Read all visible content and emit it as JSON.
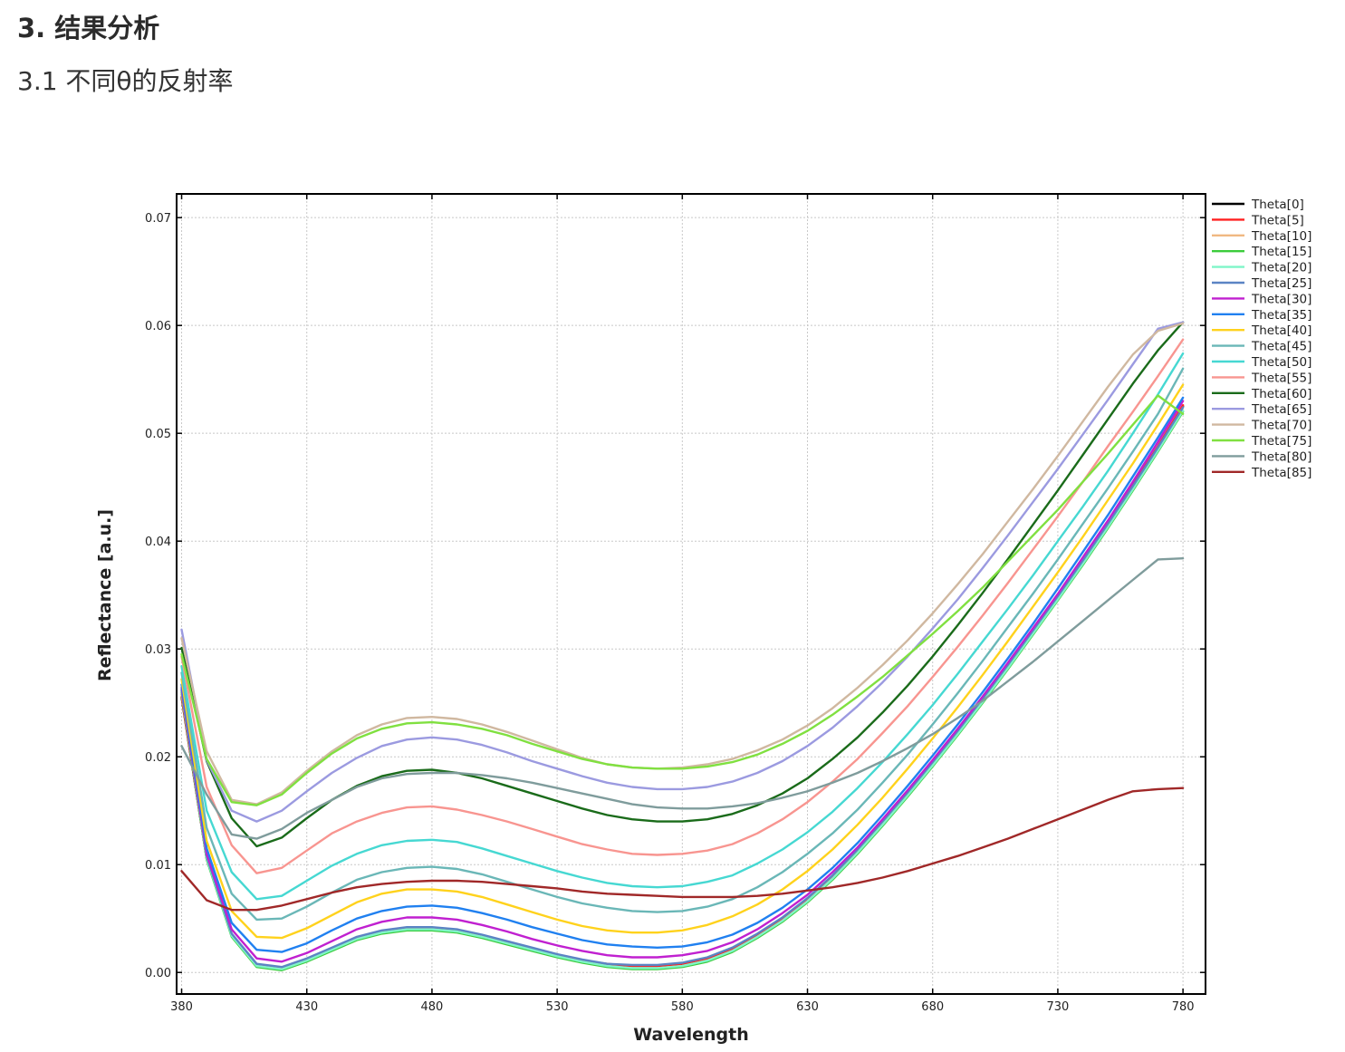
{
  "page": {
    "heading": "3. 结果分析",
    "subheading": "3.1 不同θ的反射率"
  },
  "chart_data": {
    "type": "line",
    "title": "",
    "xlabel": "Wavelength",
    "ylabel": "Reflectance [a.u.]",
    "xlim": [
      378,
      789
    ],
    "ylim": [
      -0.002,
      0.0722
    ],
    "xticks": [
      380,
      430,
      480,
      530,
      580,
      630,
      680,
      730,
      780
    ],
    "xtick_labels": [
      "380",
      "430",
      "480",
      "530",
      "580",
      "630",
      "680",
      "730",
      "780"
    ],
    "yticks": [
      0.0,
      0.01,
      0.02,
      0.03,
      0.04,
      0.05,
      0.06,
      0.07
    ],
    "ytick_labels": [
      "0.00",
      "0.01",
      "0.02",
      "0.03",
      "0.04",
      "0.05",
      "0.06",
      "0.07"
    ],
    "grid": true,
    "legend_position": "outside-right-top",
    "x": [
      380,
      390,
      400,
      410,
      420,
      430,
      440,
      450,
      460,
      470,
      480,
      490,
      500,
      510,
      520,
      530,
      540,
      550,
      560,
      570,
      580,
      590,
      600,
      610,
      620,
      630,
      640,
      650,
      660,
      670,
      680,
      690,
      700,
      710,
      720,
      730,
      740,
      750,
      760,
      770,
      780
    ],
    "series": [
      {
        "name": "Theta[0]",
        "color": "#000000",
        "values": [
          0.0255,
          0.0105,
          0.0035,
          0.0007,
          0.0004,
          0.0012,
          0.0022,
          0.0032,
          0.0038,
          0.0041,
          0.0041,
          0.0039,
          0.0034,
          0.0028,
          0.0022,
          0.0016,
          0.0011,
          0.0007,
          0.0006,
          0.0006,
          0.0008,
          0.0013,
          0.0022,
          0.0035,
          0.005,
          0.0068,
          0.0089,
          0.0113,
          0.0139,
          0.0166,
          0.0194,
          0.0223,
          0.0253,
          0.0284,
          0.0316,
          0.0348,
          0.0382,
          0.0416,
          0.0451,
          0.0487,
          0.0525
        ]
      },
      {
        "name": "Theta[5]",
        "color": "#ff2020",
        "values": [
          0.0256,
          0.0106,
          0.0035,
          0.0007,
          0.0004,
          0.0012,
          0.0022,
          0.0032,
          0.0038,
          0.0041,
          0.0041,
          0.0039,
          0.0034,
          0.0028,
          0.0022,
          0.0016,
          0.0011,
          0.0008,
          0.0006,
          0.0006,
          0.0008,
          0.0013,
          0.0022,
          0.0035,
          0.005,
          0.0068,
          0.0089,
          0.0113,
          0.0139,
          0.0166,
          0.0194,
          0.0223,
          0.0253,
          0.0284,
          0.0316,
          0.0348,
          0.0382,
          0.0416,
          0.0452,
          0.0488,
          0.0526
        ]
      },
      {
        "name": "Theta[10]",
        "color": "#f0b882",
        "values": [
          0.0258,
          0.0106,
          0.0034,
          0.0006,
          0.0003,
          0.0011,
          0.0021,
          0.0031,
          0.0037,
          0.004,
          0.004,
          0.0038,
          0.0033,
          0.0027,
          0.0021,
          0.0015,
          0.001,
          0.0006,
          0.0004,
          0.0004,
          0.0006,
          0.0011,
          0.002,
          0.0033,
          0.0048,
          0.0066,
          0.0087,
          0.0111,
          0.0137,
          0.0164,
          0.0192,
          0.0221,
          0.0251,
          0.0282,
          0.0314,
          0.0346,
          0.038,
          0.0414,
          0.045,
          0.0486,
          0.0524
        ]
      },
      {
        "name": "Theta[15]",
        "color": "#3ccc3c",
        "values": [
          0.026,
          0.0105,
          0.0033,
          0.0005,
          0.0002,
          0.001,
          0.002,
          0.003,
          0.0036,
          0.0039,
          0.0039,
          0.0037,
          0.0032,
          0.0026,
          0.002,
          0.0014,
          0.0009,
          0.0005,
          0.0003,
          0.0003,
          0.0005,
          0.001,
          0.0019,
          0.0032,
          0.0047,
          0.0065,
          0.0086,
          0.011,
          0.0136,
          0.0163,
          0.0191,
          0.022,
          0.025,
          0.0281,
          0.0313,
          0.0345,
          0.0378,
          0.0412,
          0.0447,
          0.0483,
          0.052
        ]
      },
      {
        "name": "Theta[20]",
        "color": "#7ff5c8",
        "values": [
          0.0262,
          0.0106,
          0.0034,
          0.0006,
          0.0003,
          0.0011,
          0.0021,
          0.0031,
          0.0037,
          0.004,
          0.004,
          0.0038,
          0.0033,
          0.0027,
          0.0021,
          0.0015,
          0.001,
          0.0006,
          0.0004,
          0.0004,
          0.0006,
          0.0011,
          0.002,
          0.0033,
          0.0048,
          0.0066,
          0.0087,
          0.0111,
          0.0137,
          0.0164,
          0.0192,
          0.0221,
          0.0251,
          0.0282,
          0.0314,
          0.0346,
          0.0379,
          0.0413,
          0.0448,
          0.0484,
          0.0521
        ]
      },
      {
        "name": "Theta[25]",
        "color": "#5b84c4",
        "values": [
          0.0262,
          0.0108,
          0.0036,
          0.0008,
          0.0005,
          0.0013,
          0.0023,
          0.0033,
          0.0039,
          0.0042,
          0.0042,
          0.004,
          0.0035,
          0.0029,
          0.0023,
          0.0017,
          0.0012,
          0.0008,
          0.0007,
          0.0007,
          0.0009,
          0.0014,
          0.0023,
          0.0036,
          0.0051,
          0.0069,
          0.009,
          0.0114,
          0.014,
          0.0167,
          0.0195,
          0.0224,
          0.0254,
          0.0285,
          0.0317,
          0.0349,
          0.0382,
          0.0416,
          0.0451,
          0.0487,
          0.0524
        ]
      },
      {
        "name": "Theta[30]",
        "color": "#c020d0",
        "values": [
          0.0264,
          0.011,
          0.004,
          0.0013,
          0.001,
          0.0018,
          0.0029,
          0.004,
          0.0047,
          0.0051,
          0.0051,
          0.0049,
          0.0044,
          0.0038,
          0.0031,
          0.0025,
          0.002,
          0.0016,
          0.0014,
          0.0014,
          0.0016,
          0.002,
          0.0028,
          0.004,
          0.0055,
          0.0072,
          0.0093,
          0.0116,
          0.0142,
          0.0169,
          0.0197,
          0.0226,
          0.0256,
          0.0287,
          0.0319,
          0.0351,
          0.0385,
          0.0419,
          0.0455,
          0.0492,
          0.053
        ]
      },
      {
        "name": "Theta[35]",
        "color": "#2080f0",
        "values": [
          0.0267,
          0.0115,
          0.0046,
          0.0021,
          0.0019,
          0.0027,
          0.0039,
          0.005,
          0.0057,
          0.0061,
          0.0062,
          0.006,
          0.0055,
          0.0049,
          0.0042,
          0.0036,
          0.003,
          0.0026,
          0.0024,
          0.0023,
          0.0024,
          0.0028,
          0.0035,
          0.0046,
          0.006,
          0.0077,
          0.0097,
          0.012,
          0.0146,
          0.0173,
          0.0201,
          0.023,
          0.026,
          0.0291,
          0.0323,
          0.0356,
          0.039,
          0.0424,
          0.046,
          0.0496,
          0.0533
        ]
      },
      {
        "name": "Theta[40]",
        "color": "#ffd21c",
        "values": [
          0.0272,
          0.0122,
          0.0057,
          0.0033,
          0.0032,
          0.0041,
          0.0053,
          0.0065,
          0.0073,
          0.0077,
          0.0077,
          0.0075,
          0.007,
          0.0063,
          0.0056,
          0.0049,
          0.0043,
          0.0039,
          0.0037,
          0.0037,
          0.0039,
          0.0044,
          0.0052,
          0.0063,
          0.0077,
          0.0094,
          0.0114,
          0.0137,
          0.0162,
          0.0189,
          0.0217,
          0.0246,
          0.0276,
          0.0307,
          0.0339,
          0.0371,
          0.0404,
          0.0438,
          0.0472,
          0.0508,
          0.0545
        ]
      },
      {
        "name": "Theta[45]",
        "color": "#6ab7b7",
        "values": [
          0.0278,
          0.0134,
          0.0073,
          0.0049,
          0.005,
          0.0061,
          0.0074,
          0.0086,
          0.0093,
          0.0097,
          0.0098,
          0.0096,
          0.0091,
          0.0084,
          0.0077,
          0.007,
          0.0064,
          0.006,
          0.0057,
          0.0056,
          0.0057,
          0.0061,
          0.0068,
          0.0079,
          0.0093,
          0.011,
          0.0129,
          0.0151,
          0.0176,
          0.0202,
          0.023,
          0.0259,
          0.0289,
          0.032,
          0.0351,
          0.0383,
          0.0416,
          0.0449,
          0.0483,
          0.0518,
          0.056
        ]
      },
      {
        "name": "Theta[50]",
        "color": "#46d8d2",
        "values": [
          0.0284,
          0.015,
          0.0093,
          0.0068,
          0.0071,
          0.0085,
          0.0099,
          0.011,
          0.0118,
          0.0122,
          0.0123,
          0.0121,
          0.0115,
          0.0108,
          0.0101,
          0.0094,
          0.0088,
          0.0083,
          0.008,
          0.0079,
          0.008,
          0.0084,
          0.009,
          0.0101,
          0.0114,
          0.013,
          0.0149,
          0.0171,
          0.0195,
          0.0221,
          0.0248,
          0.0277,
          0.0307,
          0.0337,
          0.0368,
          0.04,
          0.0432,
          0.0465,
          0.05,
          0.0536,
          0.0574
        ]
      },
      {
        "name": "Theta[55]",
        "color": "#f89590",
        "values": [
          0.0293,
          0.0172,
          0.0118,
          0.0092,
          0.0097,
          0.0113,
          0.0129,
          0.014,
          0.0148,
          0.0153,
          0.0154,
          0.0151,
          0.0146,
          0.014,
          0.0133,
          0.0126,
          0.0119,
          0.0114,
          0.011,
          0.0109,
          0.011,
          0.0113,
          0.0119,
          0.0129,
          0.0142,
          0.0158,
          0.0177,
          0.0198,
          0.0222,
          0.0247,
          0.0274,
          0.0302,
          0.0331,
          0.0361,
          0.0392,
          0.0423,
          0.0455,
          0.0488,
          0.052,
          0.0553,
          0.0587
        ]
      },
      {
        "name": "Theta[60]",
        "color": "#1a6b1a",
        "values": [
          0.0301,
          0.0196,
          0.0143,
          0.0117,
          0.0125,
          0.0143,
          0.016,
          0.0173,
          0.0182,
          0.0187,
          0.0188,
          0.0185,
          0.018,
          0.0173,
          0.0166,
          0.0159,
          0.0152,
          0.0146,
          0.0142,
          0.014,
          0.014,
          0.0142,
          0.0147,
          0.0155,
          0.0166,
          0.018,
          0.0198,
          0.0218,
          0.0241,
          0.0266,
          0.0293,
          0.0322,
          0.0352,
          0.0383,
          0.0415,
          0.0447,
          0.048,
          0.0513,
          0.0546,
          0.0577,
          0.0603
        ]
      },
      {
        "name": "Theta[65]",
        "color": "#9b9ae0",
        "values": [
          0.0318,
          0.0197,
          0.015,
          0.014,
          0.015,
          0.0168,
          0.0185,
          0.0199,
          0.021,
          0.0216,
          0.0218,
          0.0216,
          0.0211,
          0.0204,
          0.0196,
          0.0189,
          0.0182,
          0.0176,
          0.0172,
          0.017,
          0.017,
          0.0172,
          0.0177,
          0.0185,
          0.0196,
          0.021,
          0.0227,
          0.0247,
          0.0269,
          0.0293,
          0.0319,
          0.0346,
          0.0375,
          0.0405,
          0.0436,
          0.0467,
          0.0499,
          0.0531,
          0.0564,
          0.0597,
          0.0603
        ]
      },
      {
        "name": "Theta[70]",
        "color": "#d0b8a0",
        "values": [
          0.031,
          0.0205,
          0.016,
          0.0156,
          0.0167,
          0.0187,
          0.0205,
          0.022,
          0.023,
          0.0236,
          0.0237,
          0.0235,
          0.023,
          0.0223,
          0.0215,
          0.0207,
          0.0199,
          0.0193,
          0.019,
          0.0189,
          0.019,
          0.0193,
          0.0198,
          0.0206,
          0.0216,
          0.0229,
          0.0245,
          0.0264,
          0.0285,
          0.0308,
          0.0333,
          0.036,
          0.0388,
          0.0418,
          0.0448,
          0.0479,
          0.0511,
          0.0543,
          0.0573,
          0.0595,
          0.0602
        ]
      },
      {
        "name": "Theta[75]",
        "color": "#80e040",
        "values": [
          0.0295,
          0.0198,
          0.0158,
          0.0155,
          0.0165,
          0.0185,
          0.0203,
          0.0217,
          0.0226,
          0.0231,
          0.0232,
          0.023,
          0.0226,
          0.022,
          0.0212,
          0.0205,
          0.0198,
          0.0193,
          0.019,
          0.0189,
          0.0189,
          0.0191,
          0.0195,
          0.0202,
          0.0212,
          0.0224,
          0.0239,
          0.0256,
          0.0274,
          0.0294,
          0.0314,
          0.0335,
          0.0357,
          0.0381,
          0.0405,
          0.0429,
          0.0455,
          0.0481,
          0.0508,
          0.0535,
          0.0518
        ]
      },
      {
        "name": "Theta[80]",
        "color": "#7f9c9c",
        "values": [
          0.021,
          0.0165,
          0.0128,
          0.0124,
          0.0133,
          0.0148,
          0.016,
          0.0172,
          0.018,
          0.0184,
          0.0185,
          0.0185,
          0.0183,
          0.018,
          0.0176,
          0.0171,
          0.0166,
          0.0161,
          0.0156,
          0.0153,
          0.0152,
          0.0152,
          0.0154,
          0.0157,
          0.0162,
          0.0168,
          0.0176,
          0.0185,
          0.0196,
          0.0208,
          0.0221,
          0.0236,
          0.0252,
          0.027,
          0.0288,
          0.0307,
          0.0326,
          0.0345,
          0.0364,
          0.0383,
          0.0384
        ]
      },
      {
        "name": "Theta[85]",
        "color": "#a02828",
        "values": [
          0.0094,
          0.0067,
          0.0058,
          0.0058,
          0.0062,
          0.0068,
          0.0074,
          0.0079,
          0.0082,
          0.0084,
          0.0085,
          0.0085,
          0.0084,
          0.0082,
          0.008,
          0.0078,
          0.0075,
          0.0073,
          0.0072,
          0.0071,
          0.007,
          0.007,
          0.007,
          0.0071,
          0.0073,
          0.0076,
          0.0079,
          0.0083,
          0.0088,
          0.0094,
          0.0101,
          0.0108,
          0.0116,
          0.0124,
          0.0133,
          0.0142,
          0.0151,
          0.016,
          0.0168,
          0.017,
          0.0171
        ]
      }
    ]
  }
}
